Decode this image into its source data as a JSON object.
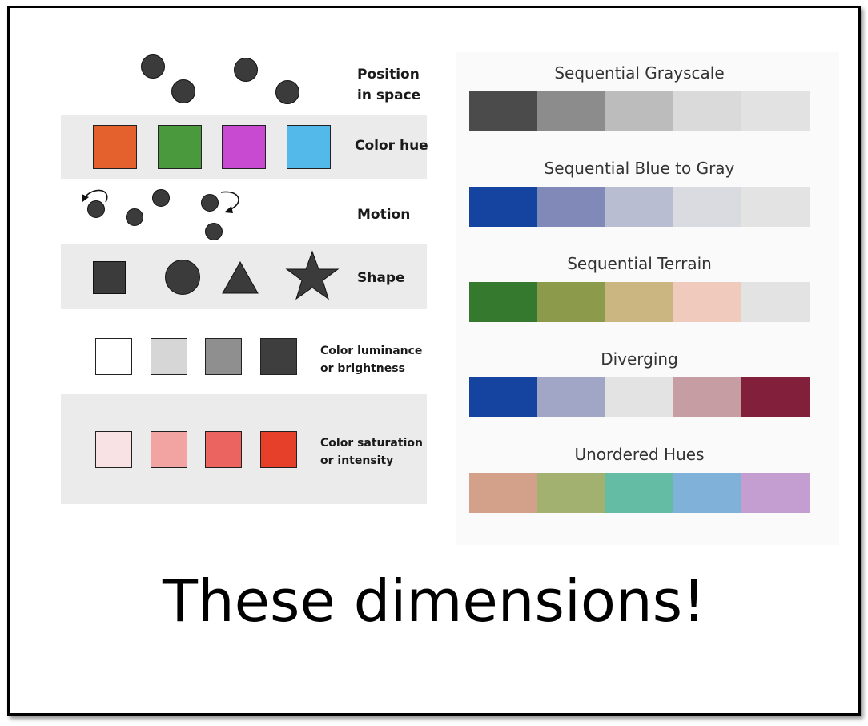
{
  "left": {
    "position_label": "Position\nin space",
    "color_hue_label": "Color hue",
    "motion_label": "Motion",
    "shape_label": "Shape",
    "luminance_label": "Color luminance\nor brightness",
    "saturation_label": "Color saturation\nor intensity",
    "hue_colors": [
      "#e4612d",
      "#4a9a3d",
      "#c84ad1",
      "#52b9ea"
    ],
    "luminance_colors": [
      "#ffffff",
      "#d6d6d6",
      "#8f8f8f",
      "#3e3e3e"
    ],
    "saturation_colors": [
      "#f9e2e3",
      "#f2a4a2",
      "#ec645f",
      "#e6402a"
    ]
  },
  "ramps": [
    {
      "title": "Sequential Grayscale",
      "colors": [
        "#4b4b4b",
        "#8c8c8c",
        "#bcbcbc",
        "#dadada",
        "#e2e2e2"
      ]
    },
    {
      "title": "Sequential Blue to Gray",
      "colors": [
        "#1543a0",
        "#8089b8",
        "#b9bdd1",
        "#dadbe0",
        "#e3e3e3"
      ]
    },
    {
      "title": "Sequential Terrain",
      "colors": [
        "#35792e",
        "#8c9a4b",
        "#cbb580",
        "#efcabd",
        "#e3e3e3"
      ]
    },
    {
      "title": "Diverging",
      "colors": [
        "#1543a0",
        "#a1a6c6",
        "#e3e3e3",
        "#c59da2",
        "#82203c"
      ]
    },
    {
      "title": "Unordered Hues",
      "colors": [
        "#d3a08a",
        "#a3b170",
        "#64bca4",
        "#80b2d9",
        "#c49dd1"
      ]
    }
  ],
  "caption": "These dimensions!"
}
